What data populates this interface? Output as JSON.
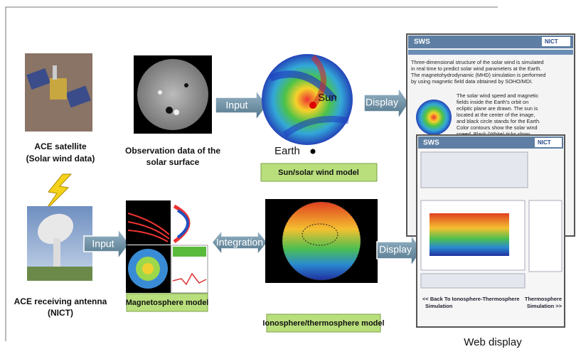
{
  "ace_satellite": {
    "lines": [
      "ACE satellite",
      "(Solar wind data)"
    ]
  },
  "solar_observation": {
    "lines": [
      "Observation data of the",
      "solar surface"
    ]
  },
  "sun_model": {
    "sun": "Sun",
    "earth": "Earth",
    "label": "Sun/solar wind model"
  },
  "ace_antenna": {
    "lines": [
      "ACE receiving antenna",
      "(NICT)"
    ]
  },
  "magnetosphere": {
    "label": "Magnetosphere model"
  },
  "ionosphere": {
    "label": "Ionosphere/thermosphere model"
  },
  "arrows": {
    "input_top": "Input",
    "input_bottom": "Input",
    "display_top": "Display",
    "display_bottom": "Display",
    "integration": "Integration"
  },
  "web": {
    "logo_back": "SWS",
    "nict_back": "NICT",
    "intro": [
      "Three-dimensional structure of the solar wind is simulated",
      "in real time to predict solar wind parameters at the Earth.",
      "The magnetohydrodynamic (MHD) simulation is performed",
      "by using magnetic field data obtained by SOHO/MDI."
    ],
    "description": [
      "The solar wind speed and magnetic",
      "fields inside the Earth's orbit on",
      "ecliptic plane are drawn. The sun is",
      "located at the center of the image,",
      "and black circle stands for the Earth.",
      "Color contours show the solar wind",
      "speed. Black (White) ticks show"
    ],
    "logo_front": "SWS",
    "nict_front": "NICT",
    "back_link": [
      "<< Back To Ionosphere-Thermosphere",
      "Simulation"
    ],
    "next_link": [
      "Thermosphere",
      "Simulation >>"
    ],
    "caption": "Web display"
  }
}
